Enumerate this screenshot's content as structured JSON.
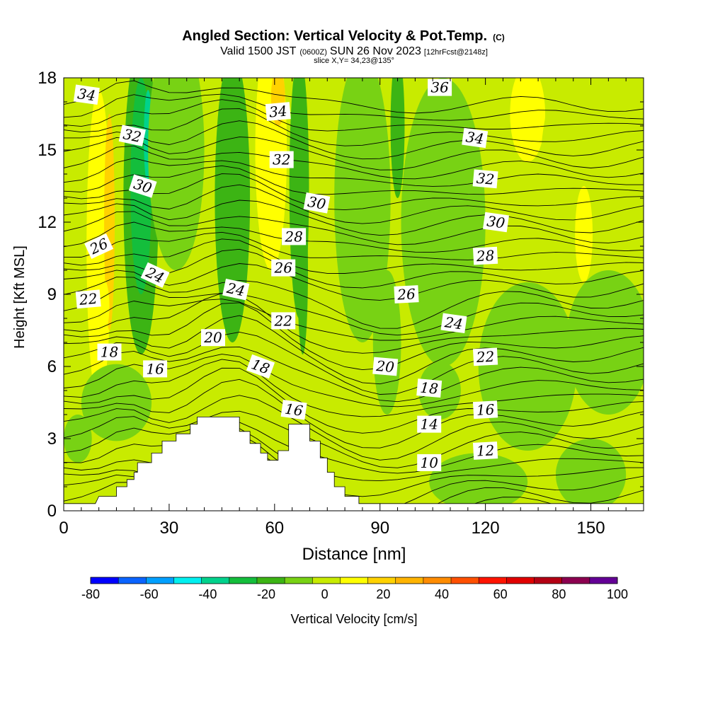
{
  "chart_data": {
    "type": "heatmap",
    "title": "Angled Section: Vertical Velocity & Pot.Temp.",
    "title_suffix": "(C)",
    "subtitle_main_a": "Valid 1500 JST",
    "subtitle_small_a": "(0600Z)",
    "subtitle_main_b": "SUN 26 Nov 2023",
    "subtitle_small_b": "[12hrFcst@2148z]",
    "slice_label": "slice X,Y= 34,23@135°",
    "xlabel": "Distance [nm]",
    "ylabel": "Height [Kft MSL]",
    "xlim": [
      0,
      165
    ],
    "ylim": [
      0,
      18
    ],
    "x_ticks": [
      0,
      30,
      60,
      90,
      120,
      150
    ],
    "y_ticks": [
      0,
      3,
      6,
      9,
      12,
      15,
      18
    ],
    "grid": false,
    "colorbar": {
      "label": "Vertical Velocity [cm/s]",
      "ticks": [
        -80,
        -60,
        -40,
        -20,
        0,
        20,
        40,
        60,
        80,
        100
      ],
      "range": [
        -80,
        100
      ],
      "step": 10,
      "colors": [
        "#0000ff",
        "#0a64ff",
        "#00a0ff",
        "#00f0f0",
        "#00d28c",
        "#14be3c",
        "#3cb414",
        "#78d214",
        "#c8eb00",
        "#ffff00",
        "#ffd200",
        "#ffb400",
        "#ff8c00",
        "#ff5000",
        "#ff1400",
        "#e10000",
        "#b40014",
        "#8c0050",
        "#640096"
      ]
    },
    "theta_contour_labels": [
      {
        "value": "34",
        "x": 6.5,
        "y": 17.3,
        "rot": 8
      },
      {
        "value": "32",
        "x": 19.5,
        "y": 15.6,
        "rot": 12
      },
      {
        "value": "30",
        "x": 22.5,
        "y": 13.5,
        "rot": 18
      },
      {
        "value": "26",
        "x": 10,
        "y": 11,
        "rot": -25
      },
      {
        "value": "24",
        "x": 26,
        "y": 9.8,
        "rot": 25
      },
      {
        "value": "22",
        "x": 7,
        "y": 8.8,
        "rot": -5
      },
      {
        "value": "18",
        "x": 13,
        "y": 6.6,
        "rot": 0
      },
      {
        "value": "16",
        "x": 26,
        "y": 5.9,
        "rot": 0
      },
      {
        "value": "34",
        "x": 61,
        "y": 16.6,
        "rot": -5
      },
      {
        "value": "32",
        "x": 62,
        "y": 14.6,
        "rot": 0
      },
      {
        "value": "30",
        "x": 72,
        "y": 12.8,
        "rot": 10
      },
      {
        "value": "28",
        "x": 65.5,
        "y": 11.4,
        "rot": 0
      },
      {
        "value": "26",
        "x": 62.5,
        "y": 10.1,
        "rot": 0
      },
      {
        "value": "24",
        "x": 49,
        "y": 9.2,
        "rot": 12
      },
      {
        "value": "22",
        "x": 62.5,
        "y": 7.9,
        "rot": 0
      },
      {
        "value": "20",
        "x": 42.5,
        "y": 7.2,
        "rot": 0
      },
      {
        "value": "18",
        "x": 56,
        "y": 6.0,
        "rot": 20
      },
      {
        "value": "16",
        "x": 65.5,
        "y": 4.2,
        "rot": 8
      },
      {
        "value": "36",
        "x": 107,
        "y": 17.6,
        "rot": 0
      },
      {
        "value": "34",
        "x": 117,
        "y": 15.5,
        "rot": 8
      },
      {
        "value": "32",
        "x": 120,
        "y": 13.8,
        "rot": 5
      },
      {
        "value": "30",
        "x": 123,
        "y": 12.0,
        "rot": 8
      },
      {
        "value": "28",
        "x": 120,
        "y": 10.6,
        "rot": -3
      },
      {
        "value": "26",
        "x": 97.5,
        "y": 9.0,
        "rot": -3
      },
      {
        "value": "24",
        "x": 111,
        "y": 7.8,
        "rot": 8
      },
      {
        "value": "22",
        "x": 120,
        "y": 6.4,
        "rot": -3
      },
      {
        "value": "20",
        "x": 91.5,
        "y": 6.0,
        "rot": 5
      },
      {
        "value": "18",
        "x": 104,
        "y": 5.1,
        "rot": 5
      },
      {
        "value": "16",
        "x": 120,
        "y": 4.2,
        "rot": -3
      },
      {
        "value": "14",
        "x": 104,
        "y": 3.6,
        "rot": 0
      },
      {
        "value": "12",
        "x": 120,
        "y": 2.5,
        "rot": -3
      },
      {
        "value": "10",
        "x": 104,
        "y": 2.0,
        "rot": 0
      }
    ]
  }
}
